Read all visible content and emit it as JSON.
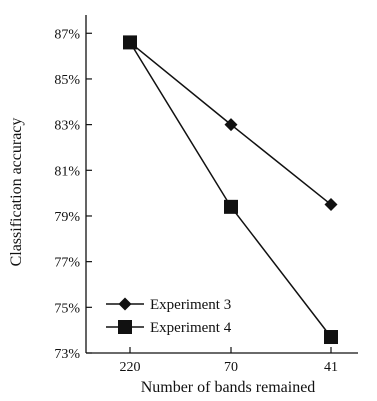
{
  "chart_data": {
    "type": "line",
    "title": "",
    "xlabel": "Number of bands remained",
    "ylabel": "Classification accuracy",
    "categories": [
      "220",
      "70",
      "41"
    ],
    "yticks": [
      "73%",
      "75%",
      "77%",
      "79%",
      "81%",
      "83%",
      "85%",
      "87%"
    ],
    "ylim": [
      73,
      87.8
    ],
    "grid": false,
    "legend_position": "bottom-left",
    "series": [
      {
        "name": "Experiment 3",
        "marker": "diamond",
        "color": "#111111",
        "values": [
          86.6,
          83.0,
          79.5
        ]
      },
      {
        "name": "Experiment 4",
        "marker": "square",
        "color": "#111111",
        "values": [
          86.6,
          79.4,
          73.7
        ]
      }
    ]
  }
}
